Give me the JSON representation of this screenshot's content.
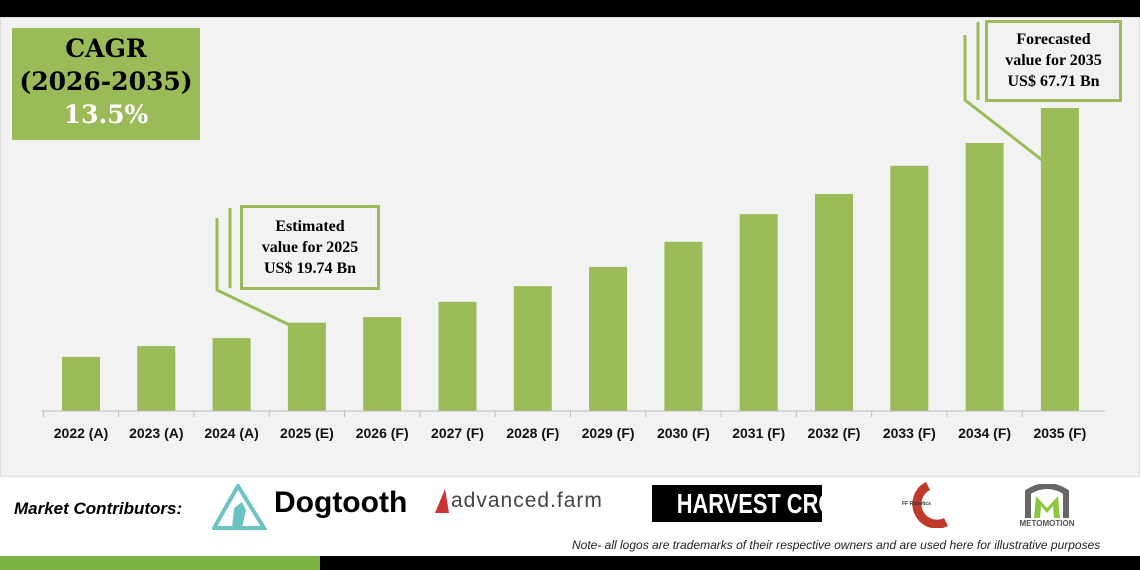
{
  "cagr": {
    "label": "CAGR",
    "period": "(2026-2035)",
    "value": "13.5%"
  },
  "callout_2025": {
    "line1": "Estimated",
    "line2": "value for 2025",
    "line3": "US$ 19.74 Bn"
  },
  "callout_2035": {
    "line1": "Forecasted",
    "line2": "value for 2035",
    "line3": "US$ 67.71 Bn"
  },
  "chart_data": {
    "type": "bar",
    "categories": [
      "2022 (A)",
      "2023 (A)",
      "2024 (A)",
      "2025 (E)",
      "2026 (F)",
      "2027 (F)",
      "2028 (F)",
      "2029 (F)",
      "2030 (F)",
      "2031 (F)",
      "2032 (F)",
      "2033 (F)",
      "2034 (F)",
      "2035 (F)"
    ],
    "values": [
      12.1,
      14.5,
      16.3,
      19.74,
      21.0,
      24.4,
      27.9,
      32.2,
      37.8,
      44.0,
      48.5,
      54.8,
      59.9,
      67.71
    ],
    "unit": "US$ Bn",
    "ylim": [
      0,
      67.71
    ],
    "grid": false,
    "bar_color": "#9bbb59"
  },
  "footer": {
    "contributors_label": "Market Contributors:",
    "logos": [
      "Dogtooth",
      "advanced.farm",
      "HARVEST CROO",
      "FF Robotics",
      "METOMOTION"
    ],
    "note": "Note- all logos are trademarks of their respective owners and are used here for illustrative purposes"
  },
  "colors": {
    "accent": "#9bbb59",
    "panel": "#f2f2f2"
  }
}
